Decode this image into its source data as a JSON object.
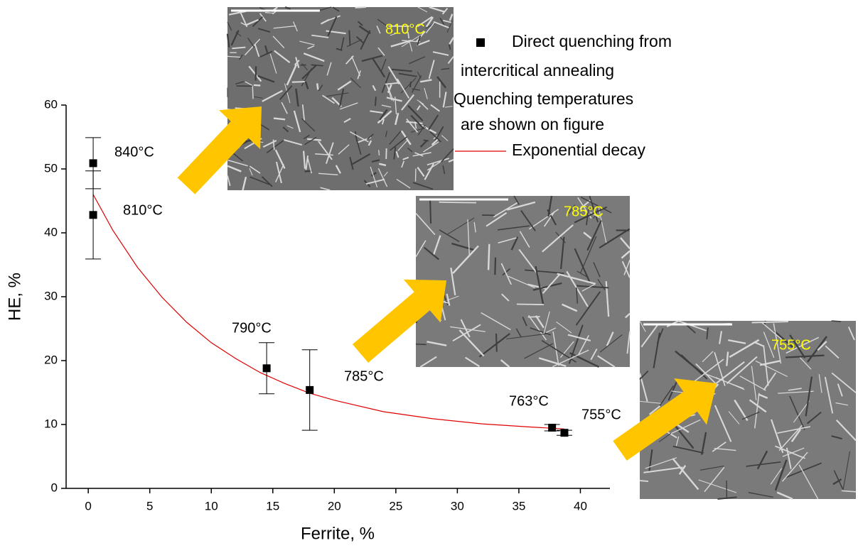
{
  "chart_data": {
    "type": "scatter",
    "xlabel": "Ferrite, %",
    "ylabel": "HE, %",
    "xlim": [
      -1.8,
      42.4
    ],
    "ylim": [
      0,
      60
    ],
    "xticks": [
      0,
      5,
      10,
      15,
      20,
      25,
      30,
      35,
      40
    ],
    "yticks": [
      0,
      10,
      20,
      30,
      40,
      50,
      60
    ],
    "series": [
      {
        "name": "Direct quenching from\nintercritical annealing\nQuenching temperatures\nare shown on figure",
        "color": "#000000",
        "marker": "square",
        "x": [
          0.4,
          0.4,
          14.5,
          18,
          37.7,
          38.7
        ],
        "values": [
          50.9,
          42.8,
          18.8,
          15.4,
          9.5,
          8.7
        ],
        "errors": [
          4,
          6.9,
          4,
          6.3,
          0.5,
          0.4
        ]
      },
      {
        "name": "Exponential decay",
        "color": "#e00000",
        "marker": "line",
        "x": [
          0.4,
          2,
          4,
          6,
          8,
          10,
          12,
          14,
          16,
          18,
          20,
          24,
          28,
          32,
          36,
          38.7
        ],
        "values": [
          46.0,
          40.4,
          34.6,
          29.9,
          26.0,
          22.8,
          20.3,
          18.1,
          16.4,
          14.9,
          13.8,
          12.0,
          10.9,
          10.1,
          9.6,
          9.3
        ]
      }
    ],
    "annotations": [
      "840°C",
      "810°C",
      "790°C",
      "785°C",
      "763°C",
      "755°C"
    ],
    "insets": [
      "810°C",
      "785°C",
      "755°C"
    ]
  }
}
